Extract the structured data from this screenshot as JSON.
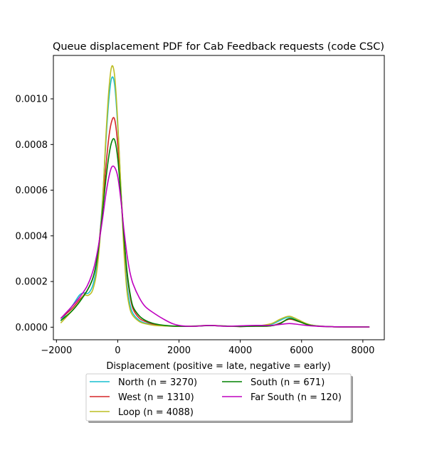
{
  "chart_data": {
    "type": "line",
    "title": "Queue displacement PDF for Cab Feedback  requests (code CSC)",
    "xlabel": "Displacement (positive = late, negative = early)",
    "ylabel": "",
    "xlim": [
      -2100,
      8700
    ],
    "ylim": [
      -5.5e-05,
      0.00119
    ],
    "x_ticks": [
      -2000,
      0,
      2000,
      4000,
      6000,
      8000
    ],
    "x_tick_labels": [
      "−2000",
      "0",
      "2000",
      "4000",
      "6000",
      "8000"
    ],
    "y_ticks": [
      0.0,
      0.0002,
      0.0004,
      0.0006,
      0.0008,
      0.001
    ],
    "y_tick_labels": [
      "0.0000",
      "0.0002",
      "0.0004",
      "0.0006",
      "0.0008",
      "0.0010"
    ],
    "grid": false,
    "legend_position": "below",
    "legend_columns": 2,
    "series": [
      {
        "name": "North (n = 3270)",
        "color": "#17becf",
        "x": [
          -1850,
          -1500,
          -1250,
          -1100,
          -950,
          -800,
          -650,
          -500,
          -400,
          -300,
          -200,
          -100,
          0,
          100,
          200,
          300,
          400,
          500,
          700,
          900,
          1200,
          1600,
          2000,
          2500,
          3000,
          3500,
          4000,
          4500,
          5000,
          5300,
          5600,
          5900,
          6300,
          7000,
          8200
        ],
        "y": [
          3e-05,
          9e-05,
          0.00014,
          0.00015,
          0.00015,
          0.00019,
          0.0003,
          0.00055,
          0.00078,
          0.00098,
          0.00109,
          0.00106,
          0.00088,
          0.00062,
          0.00036,
          0.00019,
          0.0001,
          6e-05,
          3e-05,
          1.8e-05,
          1e-05,
          6e-06,
          4e-06,
          5e-06,
          8e-06,
          4e-06,
          4e-06,
          5e-06,
          1.2e-05,
          3e-05,
          4.5e-05,
          3e-05,
          1e-05,
          2e-06,
          1e-06
        ]
      },
      {
        "name": "West (n = 1310)",
        "color": "#d62728",
        "x": [
          -1850,
          -1500,
          -1250,
          -1000,
          -800,
          -650,
          -500,
          -400,
          -300,
          -200,
          -100,
          0,
          100,
          200,
          300,
          400,
          500,
          700,
          900,
          1200,
          1600,
          2000,
          2500,
          3000,
          3500,
          4000,
          4500,
          5000,
          5300,
          5600,
          5900,
          6300,
          7000,
          8200
        ],
        "y": [
          4e-05,
          8e-05,
          0.00012,
          0.00016,
          0.00022,
          0.00032,
          0.00052,
          0.00068,
          0.00082,
          0.0009,
          0.00091,
          0.0008,
          0.0006,
          0.0004,
          0.00024,
          0.00014,
          8e-05,
          4e-05,
          2.5e-05,
          1.2e-05,
          6e-06,
          4e-06,
          4e-06,
          8e-06,
          5e-06,
          3e-06,
          4e-06,
          6e-06,
          1.8e-05,
          3.5e-05,
          2.5e-05,
          8e-06,
          2e-06,
          1e-06
        ]
      },
      {
        "name": "Loop (n = 4088)",
        "color": "#bcbd22",
        "x": [
          -1850,
          -1500,
          -1250,
          -1100,
          -950,
          -800,
          -650,
          -500,
          -400,
          -300,
          -200,
          -100,
          0,
          100,
          200,
          300,
          400,
          500,
          700,
          900,
          1200,
          1600,
          2000,
          2500,
          3000,
          3500,
          4000,
          4500,
          5000,
          5300,
          5600,
          5900,
          6300,
          7000,
          8200
        ],
        "y": [
          2e-05,
          7e-05,
          0.00011,
          0.00014,
          0.00014,
          0.00017,
          0.00028,
          0.00054,
          0.0008,
          0.00102,
          0.00114,
          0.0011,
          0.0009,
          0.00062,
          0.00034,
          0.00016,
          8e-05,
          5e-05,
          2.5e-05,
          1.5e-05,
          8e-06,
          5e-06,
          4e-06,
          5e-06,
          8e-06,
          4e-06,
          4e-06,
          5e-06,
          1.5e-05,
          3.5e-05,
          4.8e-05,
          3.2e-05,
          1e-05,
          2e-06,
          1e-06
        ]
      },
      {
        "name": "South (n = 671)",
        "color": "#008000",
        "x": [
          -1850,
          -1500,
          -1250,
          -1000,
          -800,
          -650,
          -500,
          -400,
          -300,
          -200,
          -100,
          0,
          100,
          200,
          300,
          400,
          500,
          700,
          900,
          1200,
          1600,
          2000,
          2500,
          3000,
          3500,
          4000,
          4500,
          5000,
          5300,
          5600,
          5900,
          6300,
          7000,
          8200
        ],
        "y": [
          3e-05,
          7e-05,
          0.00011,
          0.00016,
          0.00022,
          0.00032,
          0.0005,
          0.00063,
          0.00074,
          0.00081,
          0.00082,
          0.00074,
          0.00058,
          0.0004,
          0.00025,
          0.00015,
          9e-05,
          5e-05,
          3e-05,
          1.5e-05,
          7e-06,
          4e-06,
          4e-06,
          7e-06,
          5e-06,
          3e-06,
          4e-06,
          6e-06,
          1.6e-05,
          3.8e-05,
          2.6e-05,
          8e-06,
          2e-06,
          1e-06
        ]
      },
      {
        "name": "Far South (n = 120)",
        "color": "#bf00bf",
        "x": [
          -1850,
          -1500,
          -1250,
          -1000,
          -800,
          -650,
          -500,
          -400,
          -300,
          -200,
          -100,
          0,
          100,
          200,
          300,
          400,
          500,
          700,
          900,
          1200,
          1500,
          1800,
          2100,
          2500,
          3000,
          3500,
          4000,
          4500,
          5000,
          5300,
          5600,
          5900,
          6300,
          7000,
          8200
        ],
        "y": [
          4e-05,
          9e-05,
          0.00013,
          0.00018,
          0.00025,
          0.00034,
          0.00047,
          0.00057,
          0.00065,
          0.0007,
          0.0007,
          0.00066,
          0.00056,
          0.00043,
          0.00032,
          0.00024,
          0.00019,
          0.00013,
          9e-05,
          6e-05,
          3.5e-05,
          1.5e-05,
          6e-06,
          4e-06,
          8e-06,
          4e-06,
          6e-06,
          8e-06,
          8e-06,
          1.2e-05,
          1.6e-05,
          1.2e-05,
          6e-06,
          2e-06,
          1e-06
        ]
      }
    ]
  }
}
